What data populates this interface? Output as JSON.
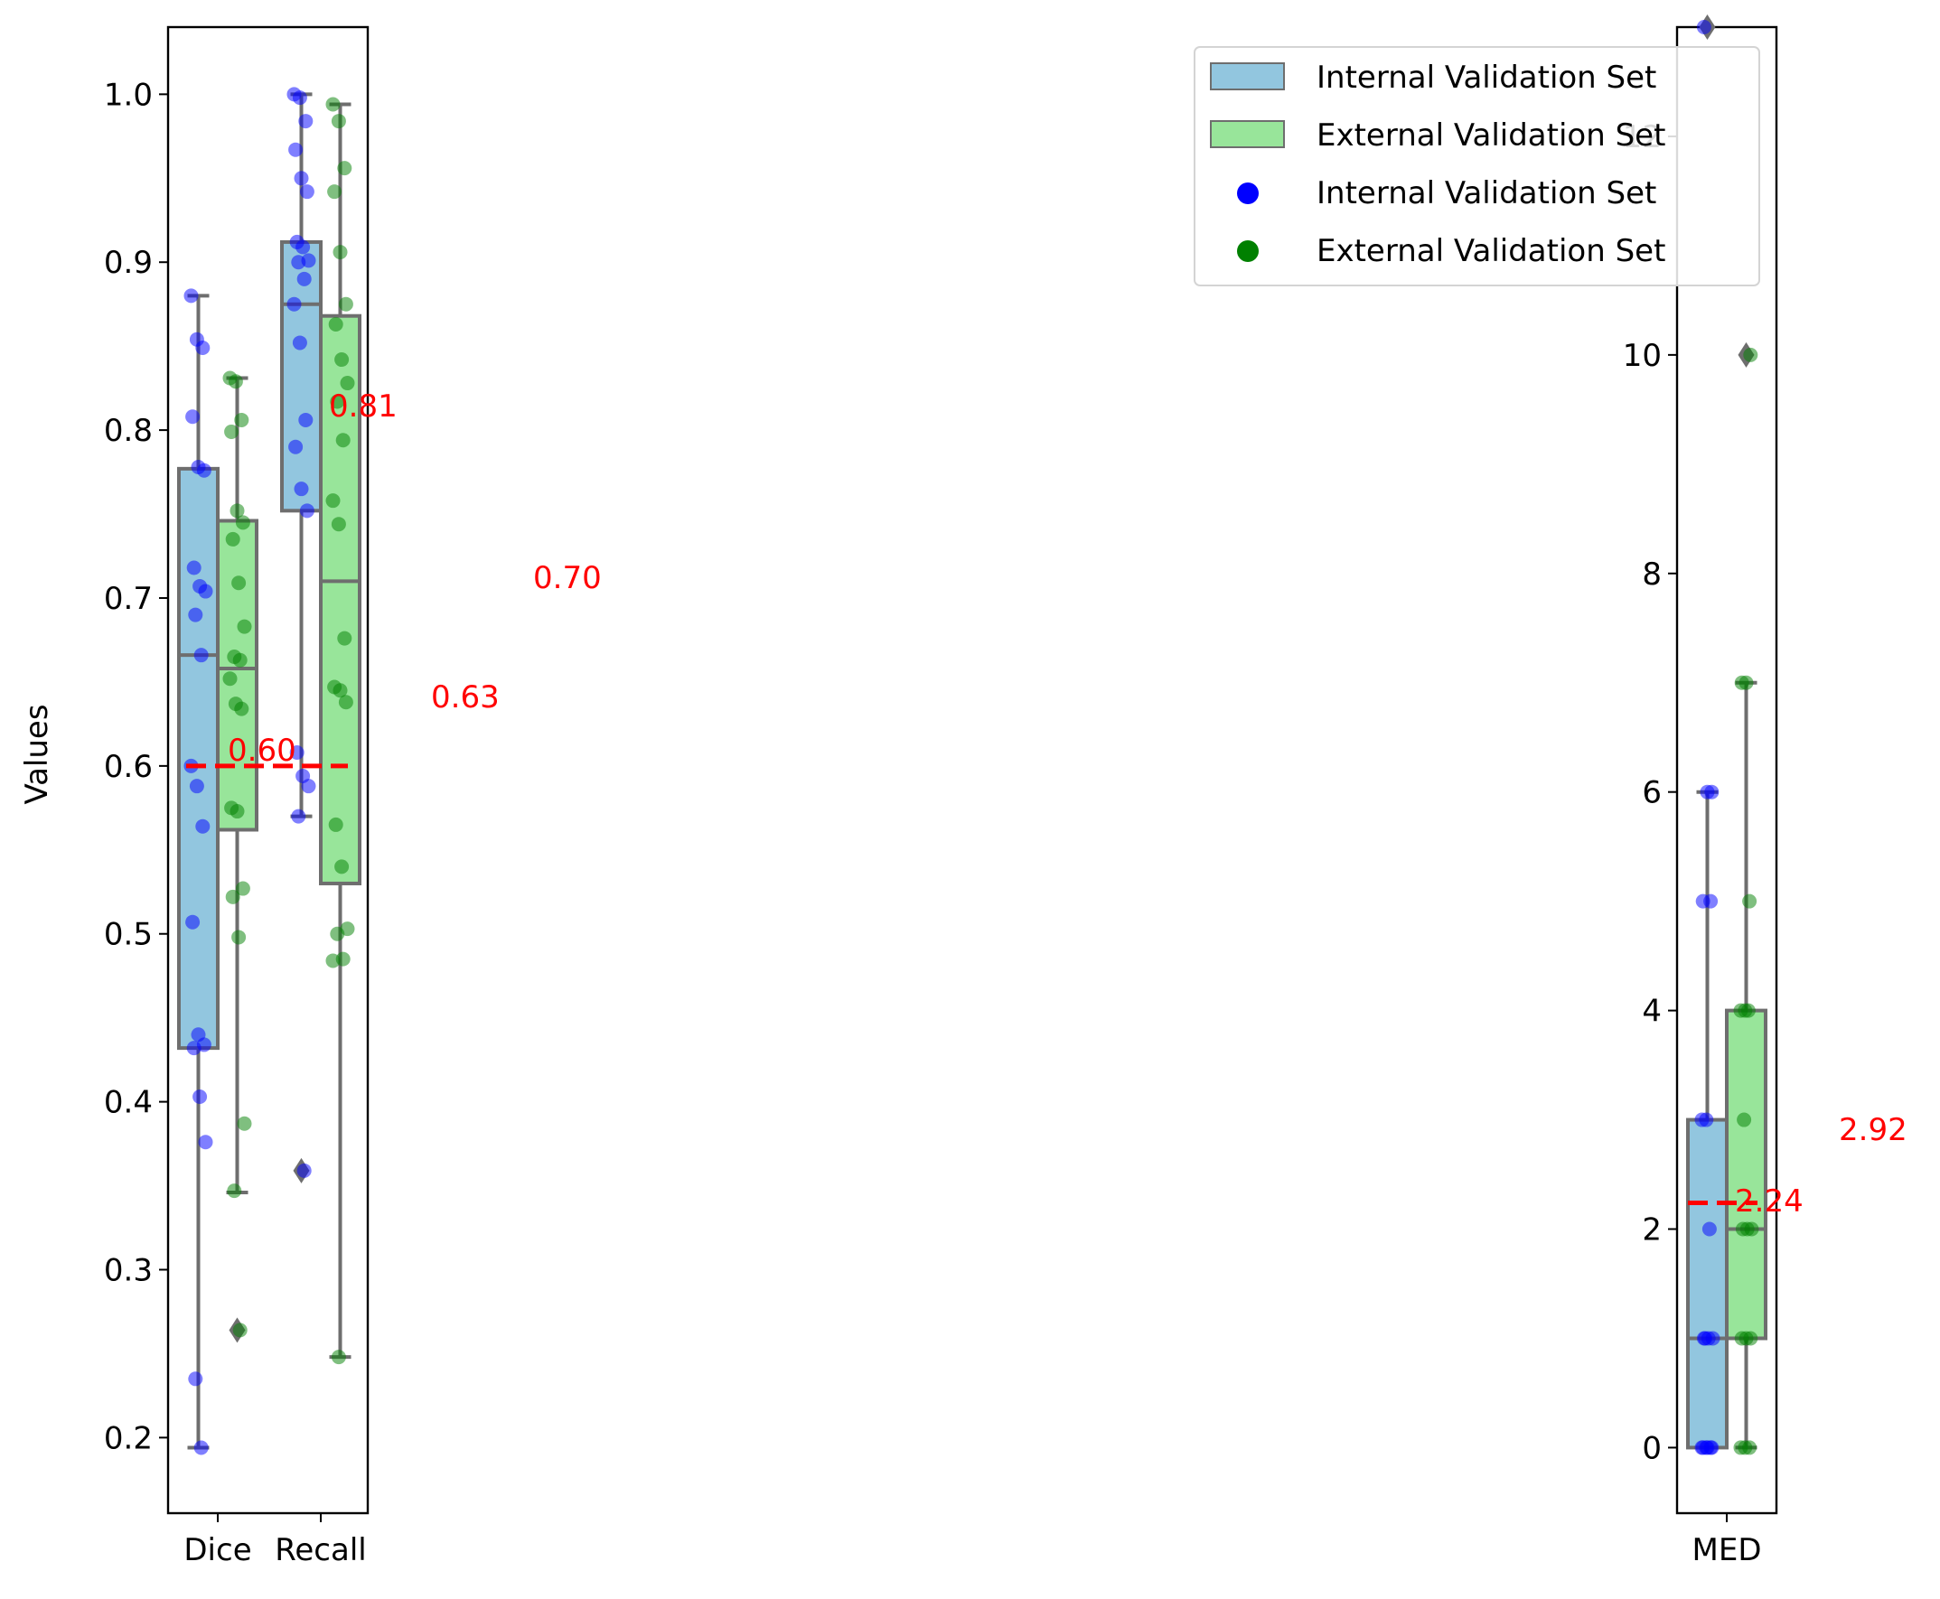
{
  "legend": {
    "position": "top-right",
    "entries": [
      {
        "label": "Internal Validation Set",
        "kind": "box",
        "color": "#92c6df"
      },
      {
        "label": "External Validation Set",
        "kind": "box",
        "color": "#98e59a"
      },
      {
        "label": "Internal Validation Set",
        "kind": "point",
        "color": "#0000ff"
      },
      {
        "label": "External Validation Set",
        "kind": "point",
        "color": "#008000"
      }
    ]
  },
  "colors": {
    "internal_box": "#92c6df",
    "external_box": "#98e59a",
    "internal_points": "#0000ff",
    "external_points": "#008000",
    "box_edge": "#6e6e6e",
    "mean_line": "#ff0000",
    "annotation": "#ff0000"
  },
  "chart_data": [
    {
      "type": "box",
      "ylabel": "Values",
      "ylim": [
        0.155,
        1.04
      ],
      "yticks": [
        0.2,
        0.3,
        0.4,
        0.5,
        0.6,
        0.7,
        0.8,
        0.9,
        1.0
      ],
      "ytick_labels": [
        "0.2",
        "0.3",
        "0.4",
        "0.5",
        "0.6",
        "0.7",
        "0.8",
        "0.9",
        "1.0"
      ],
      "categories": [
        "Dice",
        "Recall"
      ],
      "series": [
        {
          "name": "Internal Validation Set",
          "boxes": [
            {
              "whisker_low": 0.194,
              "q1": 0.432,
              "median": 0.666,
              "q3": 0.777,
              "whisker_high": 0.88,
              "outliers": [],
              "points": [
                0.88,
                0.854,
                0.849,
                0.808,
                0.778,
                0.776,
                0.718,
                0.707,
                0.704,
                0.69,
                0.666,
                0.6,
                0.588,
                0.564,
                0.507,
                0.44,
                0.434,
                0.432,
                0.403,
                0.376,
                0.235,
                0.194
              ]
            },
            {
              "whisker_low": 0.57,
              "q1": 0.752,
              "median": 0.875,
              "q3": 0.912,
              "whisker_high": 1.0,
              "outliers": [
                0.359
              ],
              "points": [
                1.0,
                0.998,
                0.984,
                0.967,
                0.95,
                0.942,
                0.912,
                0.909,
                0.901,
                0.9,
                0.89,
                0.875,
                0.852,
                0.806,
                0.79,
                0.765,
                0.752,
                0.608,
                0.594,
                0.588,
                0.57,
                0.359
              ]
            }
          ]
        },
        {
          "name": "External Validation Set",
          "boxes": [
            {
              "whisker_low": 0.346,
              "q1": 0.562,
              "median": 0.658,
              "q3": 0.746,
              "whisker_high": 0.831,
              "outliers": [
                0.264
              ],
              "points": [
                0.831,
                0.829,
                0.806,
                0.799,
                0.752,
                0.745,
                0.735,
                0.709,
                0.683,
                0.665,
                0.663,
                0.652,
                0.637,
                0.634,
                0.575,
                0.573,
                0.527,
                0.522,
                0.498,
                0.387,
                0.347,
                0.264
              ]
            },
            {
              "whisker_low": 0.248,
              "q1": 0.53,
              "median": 0.71,
              "q3": 0.868,
              "whisker_high": 0.994,
              "outliers": [],
              "points": [
                0.994,
                0.984,
                0.956,
                0.942,
                0.906,
                0.875,
                0.863,
                0.842,
                0.828,
                0.817,
                0.794,
                0.758,
                0.744,
                0.676,
                0.647,
                0.645,
                0.638,
                0.565,
                0.54,
                0.503,
                0.5,
                0.485,
                0.484,
                0.248
              ]
            }
          ]
        }
      ],
      "mean_line": {
        "value": 0.6,
        "label": "0.60"
      },
      "annotations": [
        "0.81",
        "0.70",
        "0.63"
      ]
    },
    {
      "type": "box",
      "ylabel": "",
      "ylim": [
        -0.6,
        13.0
      ],
      "yticks": [
        0,
        2,
        4,
        6,
        8,
        10,
        12
      ],
      "ytick_labels": [
        "0",
        "2",
        "4",
        "6",
        "8",
        "10",
        "12"
      ],
      "categories": [
        "MED"
      ],
      "series": [
        {
          "name": "Internal Validation Set",
          "boxes": [
            {
              "whisker_low": 0,
              "q1": 0,
              "median": 1,
              "q3": 3,
              "whisker_high": 6,
              "outliers": [
                13
              ],
              "points": [
                0,
                0,
                0,
                0,
                0,
                0,
                1,
                1,
                1,
                1,
                2,
                3,
                3,
                5,
                5,
                6,
                6,
                13
              ]
            }
          ]
        },
        {
          "name": "External Validation Set",
          "boxes": [
            {
              "whisker_low": 0,
              "q1": 1,
              "median": 2,
              "q3": 4,
              "whisker_high": 7,
              "outliers": [
                10
              ],
              "points": [
                0,
                0,
                0,
                1,
                1,
                1,
                2,
                2,
                2,
                3,
                4,
                4,
                4,
                5,
                7,
                7,
                10
              ]
            }
          ]
        }
      ],
      "mean_line": {
        "value": 2.24,
        "label": "2.24"
      },
      "annotations": [
        "2.92"
      ]
    }
  ]
}
